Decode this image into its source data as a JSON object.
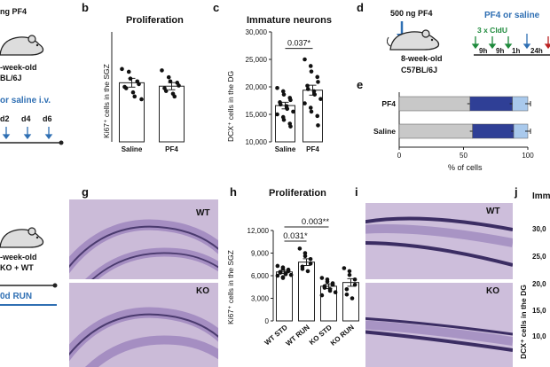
{
  "panels": {
    "a": {
      "title_frag": "ng PF4",
      "mouse_text_1": "-week-old",
      "mouse_text_2": "BL/6J",
      "treatment": "or saline i.v.",
      "days": [
        "d2",
        "d4",
        "d6"
      ]
    },
    "b": {
      "label": "b",
      "title": "Proliferation",
      "ylabel": "Ki67⁺ cells in the SGZ"
    },
    "c": {
      "label": "c",
      "title": "Immature neurons",
      "ylabel": "DCX⁺ cells in the DG",
      "pvalue": "0.037*"
    },
    "d": {
      "label": "d",
      "dose": "500 ng  PF4",
      "treatment": "PF4 or saline",
      "cldu": "3 x CldU",
      "mouse_text_1": "8-week-old",
      "mouse_text_2": "C57BL/6J",
      "intervals": [
        "9h",
        "9h",
        "1h",
        "24h"
      ]
    },
    "e": {
      "label": "e",
      "xlabel": "% of cells"
    },
    "f": {
      "mouse_text_1": "-week-old",
      "mouse_text_2": "KO + WT",
      "run": "0d RUN"
    },
    "g": {
      "label": "g",
      "tag_top": "WT",
      "tag_bottom": "KO"
    },
    "h": {
      "label": "h",
      "title": "Proliferation",
      "ylabel": "Ki67⁺ cells in the SGZ",
      "p1": "0.031*",
      "p2": "0.003**"
    },
    "i": {
      "label": "i",
      "tag_top": "WT",
      "tag_bottom": "KO"
    },
    "j": {
      "label": "j",
      "title_frag": "Imm",
      "ylabel": "DCX⁺ cells in the DG",
      "ticks": [
        "30,0",
        "25,0",
        "20,0",
        "15,0",
        "10,0"
      ]
    }
  },
  "chart_data": [
    {
      "id": "b",
      "type": "bar",
      "title": "Proliferation",
      "xlabel": "",
      "ylabel": "Ki67⁺ cells in the SGZ",
      "categories": [
        "Saline",
        "PF4"
      ],
      "values": [
        4300,
        4050
      ],
      "errors": [
        320,
        260
      ],
      "ylim": [
        0,
        8000
      ],
      "ticks": [],
      "points": [
        [
          5300,
          5100,
          4600,
          4400,
          4200,
          4000,
          3900,
          3600,
          3300,
          3100
        ],
        [
          5200,
          4700,
          4400,
          4300,
          4100,
          3900,
          3700,
          3500,
          3300
        ]
      ]
    },
    {
      "id": "c",
      "type": "bar",
      "title": "Immature neurons",
      "xlabel": "",
      "ylabel": "DCX⁺ cells in the DG",
      "categories": [
        "Saline",
        "PF4"
      ],
      "values": [
        16600,
        19400
      ],
      "errors": [
        600,
        900
      ],
      "ylim": [
        10000,
        30000
      ],
      "ticks": [
        "10,000",
        "15,000",
        "20,000",
        "25,000",
        "30,000"
      ],
      "points": [
        [
          19800,
          19200,
          18600,
          18000,
          17600,
          17200,
          16800,
          16500,
          16000,
          15500,
          15000,
          14500,
          14000,
          13300,
          12800
        ],
        [
          25000,
          23800,
          22800,
          21800,
          20900,
          20200,
          19600,
          19200,
          18600,
          17800,
          17000,
          16200,
          15500,
          14700,
          13000
        ]
      ]
    },
    {
      "id": "e",
      "type": "bar",
      "orientation": "horizontal",
      "stacked": true,
      "categories": [
        "PF4",
        "Saline"
      ],
      "series": [
        {
          "values": [
            55,
            57
          ],
          "color": "#c8c8c8"
        },
        {
          "values": [
            33,
            32
          ],
          "color": "#2f3f96"
        },
        {
          "values": [
            12,
            11
          ],
          "color": "#a9c9ec"
        }
      ],
      "xlim": [
        0,
        100
      ],
      "ticks": [
        "0",
        "50",
        "100"
      ],
      "xlabel": "% of cells"
    },
    {
      "id": "h",
      "type": "bar",
      "title": "Proliferation",
      "xlabel": "",
      "ylabel": "Ki67⁺ cells in the SGZ",
      "categories": [
        "WT STD",
        "WT RUN",
        "KO STD",
        "KO RUN"
      ],
      "values": [
        6500,
        7800,
        4600,
        5100
      ],
      "errors": [
        200,
        450,
        300,
        500
      ],
      "ylim": [
        0,
        12000
      ],
      "ticks": [
        "0",
        "3,000",
        "6,000",
        "9,000",
        "12,000"
      ],
      "points": [
        [
          7300,
          7100,
          6900,
          6800,
          6600,
          6500,
          6400,
          6300,
          6200,
          6100,
          6000,
          5800,
          5700
        ],
        [
          9600,
          9000,
          8600,
          8200,
          7600,
          7200,
          6900,
          6600
        ],
        [
          5700,
          5500,
          5200,
          5000,
          4800,
          4600,
          4400,
          4200,
          4000,
          3800,
          3400
        ],
        [
          7000,
          6600,
          6100,
          5500,
          4800,
          4200,
          3500,
          3000
        ]
      ]
    }
  ]
}
